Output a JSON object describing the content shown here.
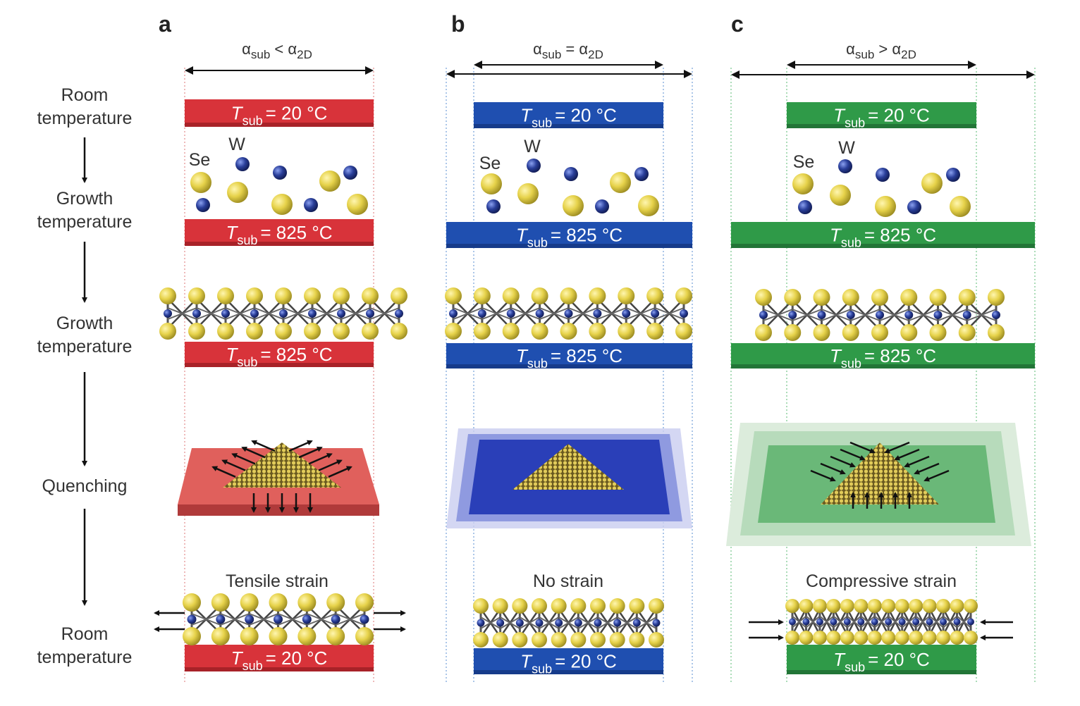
{
  "panels": [
    {
      "letter": "a",
      "relation": "<",
      "strain_label": "Tensile strain",
      "color": "#d8333a",
      "dark": "#a82228",
      "guide": "#e8a4a4"
    },
    {
      "letter": "b",
      "relation": "=",
      "strain_label": "No strain",
      "color": "#1f4fb0",
      "dark": "#163b8a",
      "guide": "#8fb4e0"
    },
    {
      "letter": "c",
      "relation": ">",
      "strain_label": "Compressive strain",
      "color": "#2f9a48",
      "dark": "#227537",
      "guide": "#8fd0a0"
    }
  ],
  "alpha": {
    "symbol": "α",
    "sub": "sub",
    "sub2": "2D"
  },
  "temp": {
    "symbol": "T",
    "sub": "sub",
    "room": "= 20 °C",
    "growth": "= 825 °C"
  },
  "atoms": {
    "se": "Se",
    "w": "W",
    "se_color": "#e6d24a",
    "w_color": "#2a3f9a"
  },
  "stages": [
    {
      "lines": [
        "Room",
        "temperature"
      ]
    },
    {
      "lines": [
        "Growth",
        "temperature"
      ]
    },
    {
      "lines": [
        "Growth",
        "temperature"
      ]
    },
    {
      "lines": [
        "Quenching"
      ]
    },
    {
      "lines": [
        "Room",
        "temperature"
      ]
    }
  ]
}
